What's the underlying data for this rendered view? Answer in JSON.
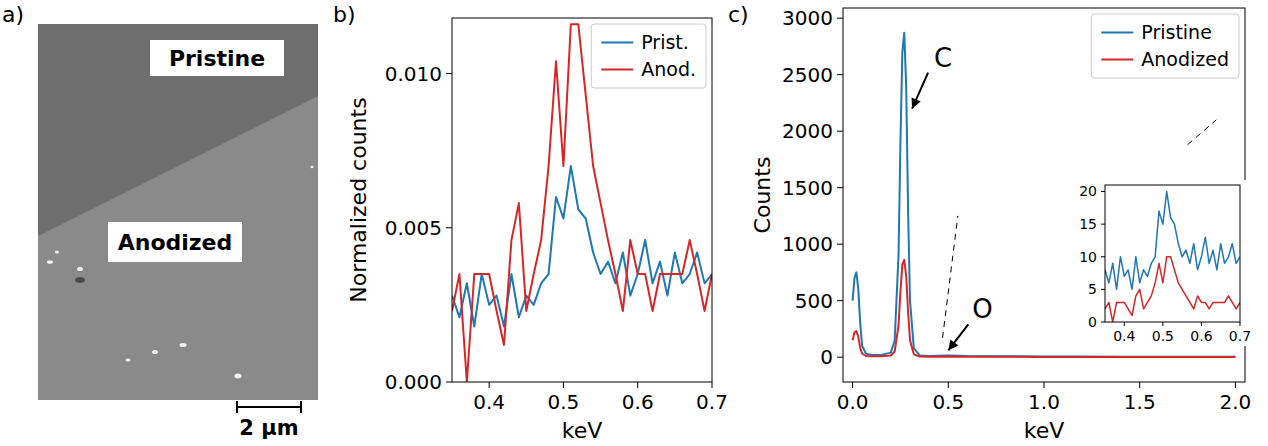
{
  "chart_data": [
    {
      "type": "image",
      "panel": "a)",
      "labels": [
        "Pristine",
        "Anodized"
      ],
      "scale_bar": "2 µm"
    },
    {
      "type": "line",
      "panel": "b)",
      "x_label": "keV",
      "y_label": "Normalized counts",
      "xlim": [
        0.35,
        0.7
      ],
      "ylim": [
        0,
        0.0118
      ],
      "xticks": [
        0.4,
        0.5,
        0.6,
        0.7
      ],
      "yticks": [
        {
          "value": 0,
          "label": "0.000"
        },
        {
          "value": 0.005,
          "label": "0.005"
        },
        {
          "value": 0.01,
          "label": "0.010"
        }
      ],
      "legend": "upper right",
      "x": [
        0.35,
        0.36,
        0.37,
        0.38,
        0.39,
        0.4,
        0.41,
        0.42,
        0.43,
        0.44,
        0.45,
        0.46,
        0.47,
        0.48,
        0.49,
        0.5,
        0.51,
        0.52,
        0.53,
        0.54,
        0.55,
        0.56,
        0.57,
        0.58,
        0.59,
        0.6,
        0.61,
        0.62,
        0.63,
        0.64,
        0.65,
        0.66,
        0.67,
        0.68,
        0.69,
        0.7
      ],
      "series": [
        {
          "name": "Prist.",
          "color": "#1f77b4",
          "values": [
            0.0028,
            0.0021,
            0.0032,
            0.0018,
            0.0035,
            0.0025,
            0.0028,
            0.0018,
            0.0035,
            0.0021,
            0.0028,
            0.0025,
            0.0032,
            0.0035,
            0.006,
            0.0053,
            0.007,
            0.0056,
            0.0053,
            0.0042,
            0.0035,
            0.0039,
            0.0032,
            0.0042,
            0.0028,
            0.0035,
            0.0046,
            0.0032,
            0.0039,
            0.0028,
            0.0042,
            0.0032,
            0.0035,
            0.0042,
            0.0032,
            0.0035
          ]
        },
        {
          "name": "Anod.",
          "color": "#d62728",
          "values": [
            0.0023,
            0.0035,
            0,
            0.0035,
            0.0035,
            0.0035,
            0.0023,
            0.0012,
            0.0046,
            0.0058,
            0.0023,
            0.0035,
            0.0046,
            0.007,
            0.0104,
            0.007,
            0.0116,
            0.0116,
            0.0093,
            0.007,
            0.0058,
            0.0046,
            0.0035,
            0.0023,
            0.0046,
            0.0035,
            0.0035,
            0.0023,
            0.0035,
            0.0035,
            0.0035,
            0.0035,
            0.0046,
            0.0035,
            0.0023,
            0.0035
          ]
        }
      ]
    },
    {
      "type": "line",
      "panel": "c)",
      "x_label": "keV",
      "y_label": "Counts",
      "xlim": [
        -0.05,
        2.05
      ],
      "ylim": [
        -220,
        3090
      ],
      "xticks": [
        {
          "value": 0,
          "label": "0.0"
        },
        0.5,
        {
          "value": 1,
          "label": "1.0"
        },
        1.5,
        {
          "value": 2,
          "label": "2.0"
        }
      ],
      "yticks": [
        0,
        500,
        1000,
        1500,
        2000,
        2500,
        3000
      ],
      "legend": "upper right",
      "annotations": [
        "C",
        "O"
      ],
      "x": [
        0,
        0.01,
        0.02,
        0.03,
        0.04,
        0.05,
        0.07,
        0.1,
        0.15,
        0.2,
        0.22,
        0.24,
        0.25,
        0.26,
        0.27,
        0.28,
        0.29,
        0.3,
        0.32,
        0.35,
        0.4,
        0.5,
        0.6,
        0.8,
        1,
        1.2,
        1.4,
        1.6,
        1.8,
        2
      ],
      "series": [
        {
          "name": "Pristine",
          "color": "#1f77b4",
          "values": [
            500,
            700,
            750,
            600,
            300,
            100,
            30,
            20,
            20,
            40,
            150,
            900,
            1900,
            2700,
            2870,
            2400,
            1300,
            500,
            80,
            15,
            10,
            15,
            10,
            8,
            6,
            5,
            4,
            4,
            3,
            3
          ]
        },
        {
          "name": "Anodized",
          "color": "#d62728",
          "values": [
            150,
            220,
            230,
            180,
            80,
            30,
            10,
            8,
            8,
            15,
            50,
            280,
            580,
            820,
            860,
            720,
            400,
            150,
            25,
            5,
            3,
            6,
            3,
            3,
            2,
            2,
            2,
            1,
            1,
            1
          ]
        }
      ],
      "inset": {
        "type": "line",
        "xlim": [
          0.35,
          0.7
        ],
        "ylim": [
          0,
          21
        ],
        "xticks": [
          0.4,
          0.5,
          0.6,
          0.7
        ],
        "yticks": [
          0,
          5,
          10,
          15,
          20
        ],
        "x": [
          0.35,
          0.36,
          0.37,
          0.38,
          0.39,
          0.4,
          0.41,
          0.42,
          0.43,
          0.44,
          0.45,
          0.46,
          0.47,
          0.48,
          0.49,
          0.5,
          0.51,
          0.52,
          0.53,
          0.54,
          0.55,
          0.56,
          0.57,
          0.58,
          0.59,
          0.6,
          0.61,
          0.62,
          0.63,
          0.64,
          0.65,
          0.66,
          0.67,
          0.68,
          0.69,
          0.7
        ],
        "series": [
          {
            "color": "#1f77b4",
            "values": [
              8,
              6,
              9,
              5,
              10,
              7,
              8,
              5,
              10,
              6,
              8,
              7,
              9,
              10,
              17,
              15,
              20,
              16,
              15,
              12,
              10,
              11,
              9,
              12,
              8,
              10,
              13,
              9,
              11,
              8,
              12,
              9,
              10,
              12,
              9,
              10
            ]
          },
          {
            "color": "#d62728",
            "values": [
              2,
              3,
              0,
              3,
              3,
              3,
              2,
              1,
              4,
              5,
              2,
              3,
              4,
              6,
              9,
              6,
              10,
              10,
              8,
              6,
              5,
              4,
              3,
              2,
              4,
              3,
              3,
              2,
              3,
              3,
              3,
              3,
              4,
              3,
              2,
              3
            ]
          }
        ]
      }
    }
  ]
}
